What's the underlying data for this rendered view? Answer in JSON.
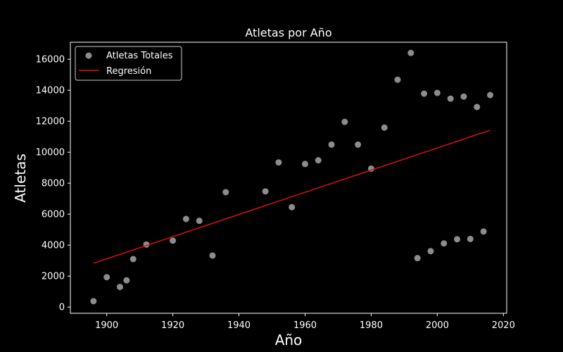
{
  "chart_data": {
    "type": "scatter",
    "title": "Atletas por Año",
    "xlabel": "Año",
    "ylabel": "Atletas",
    "xlim": [
      1889,
      2021
    ],
    "ylim": [
      -400,
      17100
    ],
    "xticks": [
      1900,
      1920,
      1940,
      1960,
      1980,
      2000,
      2020
    ],
    "xtick_labels": [
      "1900",
      "1920",
      "1940",
      "1960",
      "1980",
      "2000",
      "2020"
    ],
    "yticks": [
      0,
      2000,
      4000,
      6000,
      8000,
      10000,
      12000,
      14000,
      16000
    ],
    "ytick_labels": [
      "0",
      "2000",
      "4000",
      "6000",
      "8000",
      "10000",
      "12000",
      "14000",
      "16000"
    ],
    "grid": false,
    "legend_position": "top-left",
    "colors": {
      "background": "#000000",
      "foreground": "#ffffff",
      "points": "#8c8c8c",
      "regression": "#e01010"
    },
    "series": [
      {
        "name": "Atletas Totales",
        "type": "scatter",
        "x": [
          1896,
          1900,
          1904,
          1906,
          1908,
          1912,
          1920,
          1924,
          1928,
          1932,
          1936,
          1948,
          1952,
          1956,
          1960,
          1964,
          1968,
          1972,
          1976,
          1980,
          1984,
          1988,
          1992,
          1994,
          1996,
          1998,
          2000,
          2002,
          2004,
          2006,
          2008,
          2010,
          2012,
          2014,
          2016
        ],
        "y": [
          380,
          1930,
          1300,
          1730,
          3100,
          4040,
          4290,
          5690,
          5570,
          3330,
          7420,
          7470,
          9340,
          6450,
          9240,
          9480,
          10490,
          11960,
          10490,
          8940,
          11590,
          14680,
          16410,
          3160,
          13780,
          3610,
          13830,
          4110,
          13460,
          4380,
          13590,
          4400,
          12920,
          4880,
          13690
        ]
      },
      {
        "name": "Regresión",
        "type": "line",
        "x": [
          1896,
          2016
        ],
        "y": [
          2830,
          11420
        ]
      }
    ]
  }
}
